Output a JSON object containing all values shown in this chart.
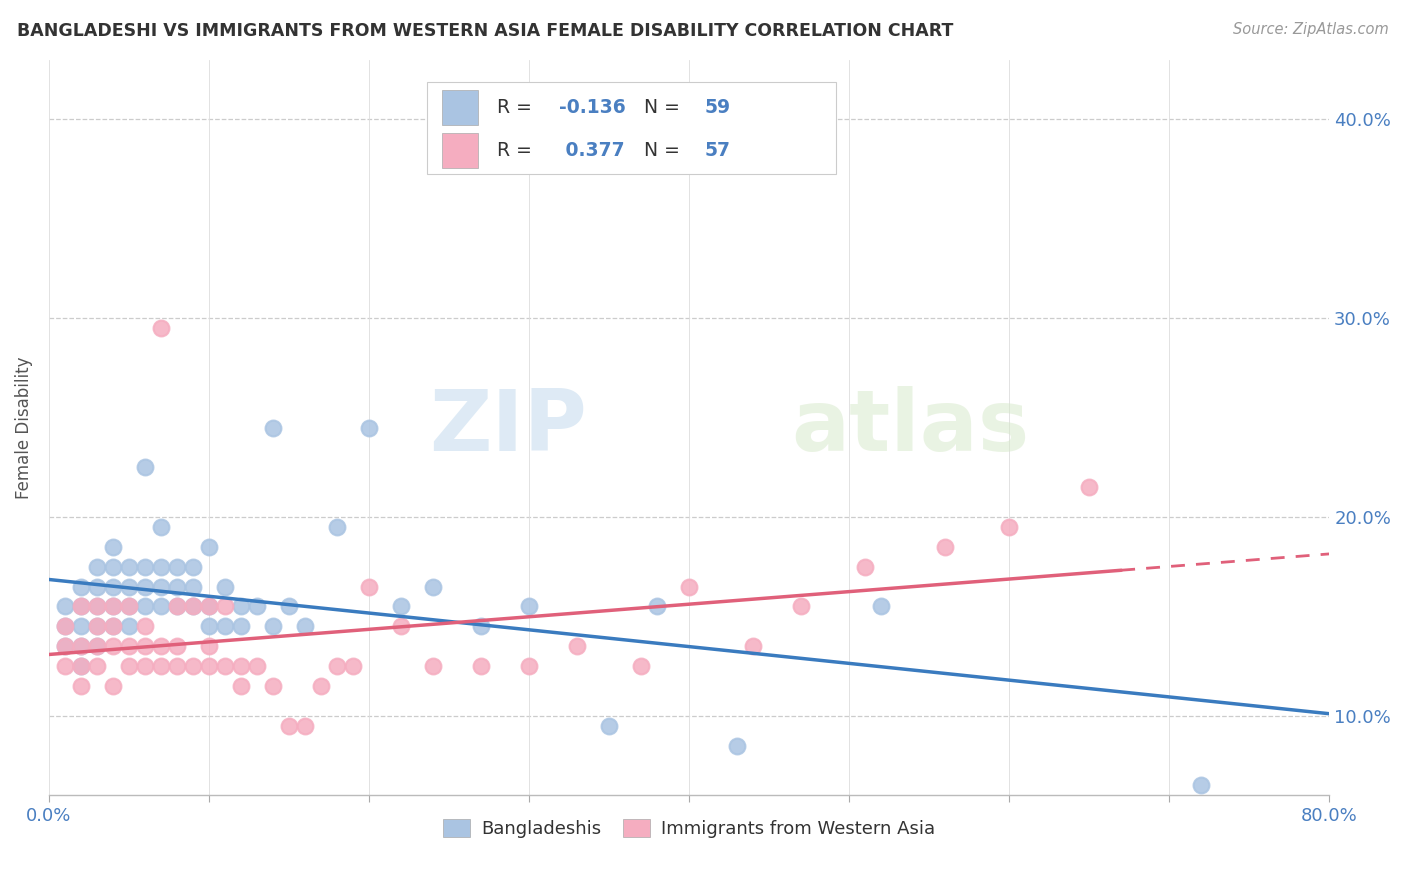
{
  "title": "BANGLADESHI VS IMMIGRANTS FROM WESTERN ASIA FEMALE DISABILITY CORRELATION CHART",
  "source": "Source: ZipAtlas.com",
  "ylabel": "Female Disability",
  "xlim": [
    0.0,
    0.8
  ],
  "ylim": [
    0.06,
    0.43
  ],
  "xtick_positions": [
    0.0,
    0.1,
    0.2,
    0.3,
    0.4,
    0.5,
    0.6,
    0.7,
    0.8
  ],
  "ytick_positions": [
    0.1,
    0.2,
    0.3,
    0.4
  ],
  "ytick_labels": [
    "10.0%",
    "20.0%",
    "30.0%",
    "40.0%"
  ],
  "blue_R": -0.136,
  "blue_N": 59,
  "pink_R": 0.377,
  "pink_N": 57,
  "blue_scatter_color": "#aac4e2",
  "pink_scatter_color": "#f5adc0",
  "blue_line_color": "#3a7bbf",
  "pink_line_color": "#e0607a",
  "text_color": "#4a7fc1",
  "label_color": "#555555",
  "watermark_color": "#d8e8f0",
  "background_color": "#ffffff",
  "legend_label_blue": "Bangladeshis",
  "legend_label_pink": "Immigrants from Western Asia",
  "blue_scatter_x": [
    0.01,
    0.01,
    0.01,
    0.02,
    0.02,
    0.02,
    0.02,
    0.02,
    0.03,
    0.03,
    0.03,
    0.03,
    0.03,
    0.04,
    0.04,
    0.04,
    0.04,
    0.04,
    0.05,
    0.05,
    0.05,
    0.05,
    0.06,
    0.06,
    0.06,
    0.06,
    0.07,
    0.07,
    0.07,
    0.07,
    0.08,
    0.08,
    0.08,
    0.09,
    0.09,
    0.09,
    0.1,
    0.1,
    0.1,
    0.11,
    0.11,
    0.12,
    0.12,
    0.13,
    0.14,
    0.14,
    0.15,
    0.16,
    0.18,
    0.2,
    0.22,
    0.24,
    0.27,
    0.3,
    0.35,
    0.38,
    0.43,
    0.52,
    0.72
  ],
  "blue_scatter_y": [
    0.135,
    0.145,
    0.155,
    0.125,
    0.135,
    0.145,
    0.155,
    0.165,
    0.135,
    0.145,
    0.155,
    0.165,
    0.175,
    0.145,
    0.155,
    0.165,
    0.175,
    0.185,
    0.145,
    0.155,
    0.165,
    0.175,
    0.155,
    0.165,
    0.175,
    0.225,
    0.155,
    0.165,
    0.175,
    0.195,
    0.155,
    0.165,
    0.175,
    0.155,
    0.165,
    0.175,
    0.145,
    0.155,
    0.185,
    0.145,
    0.165,
    0.145,
    0.155,
    0.155,
    0.145,
    0.245,
    0.155,
    0.145,
    0.195,
    0.245,
    0.155,
    0.165,
    0.145,
    0.155,
    0.095,
    0.155,
    0.085,
    0.155,
    0.065
  ],
  "pink_scatter_x": [
    0.01,
    0.01,
    0.01,
    0.02,
    0.02,
    0.02,
    0.02,
    0.03,
    0.03,
    0.03,
    0.03,
    0.04,
    0.04,
    0.04,
    0.04,
    0.05,
    0.05,
    0.05,
    0.06,
    0.06,
    0.06,
    0.07,
    0.07,
    0.07,
    0.08,
    0.08,
    0.08,
    0.09,
    0.09,
    0.1,
    0.1,
    0.1,
    0.11,
    0.11,
    0.12,
    0.12,
    0.13,
    0.14,
    0.15,
    0.16,
    0.17,
    0.18,
    0.19,
    0.2,
    0.22,
    0.24,
    0.27,
    0.3,
    0.33,
    0.37,
    0.4,
    0.44,
    0.47,
    0.51,
    0.56,
    0.6,
    0.65
  ],
  "pink_scatter_y": [
    0.125,
    0.135,
    0.145,
    0.115,
    0.125,
    0.135,
    0.155,
    0.125,
    0.135,
    0.145,
    0.155,
    0.115,
    0.135,
    0.145,
    0.155,
    0.125,
    0.135,
    0.155,
    0.125,
    0.135,
    0.145,
    0.125,
    0.135,
    0.295,
    0.125,
    0.135,
    0.155,
    0.125,
    0.155,
    0.125,
    0.135,
    0.155,
    0.125,
    0.155,
    0.115,
    0.125,
    0.125,
    0.115,
    0.095,
    0.095,
    0.115,
    0.125,
    0.125,
    0.165,
    0.145,
    0.125,
    0.125,
    0.125,
    0.135,
    0.125,
    0.165,
    0.135,
    0.155,
    0.175,
    0.185,
    0.195,
    0.215
  ]
}
